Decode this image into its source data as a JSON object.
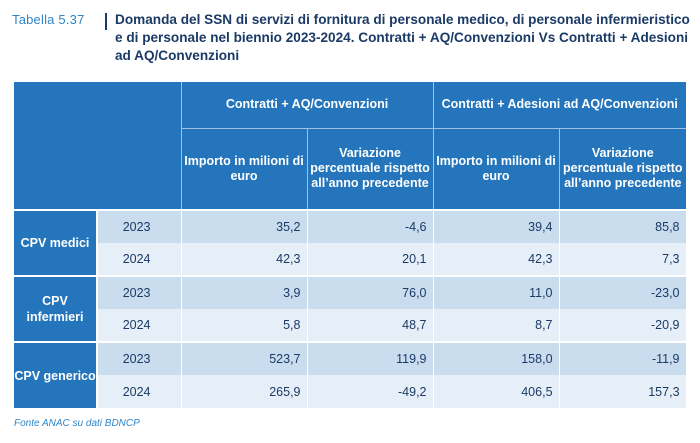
{
  "caption": {
    "label": "Tabella 5.37",
    "title": "Domanda del SSN di servizi di fornitura di personale medico, di personale infermieristico e di personale nel biennio 2023-2024. Contratti + AQ/Convenzioni Vs Contratti + Adesioni ad AQ/Convenzioni"
  },
  "table": {
    "groups": [
      "Contratti + AQ/Convenzioni",
      "Contratti + Adesioni ad AQ/Convenzioni"
    ],
    "subheaders": [
      "Importo in milioni di euro",
      "Variazione percentuale rispetto all’anno precedente",
      "Importo in milioni di euro",
      "Variazione percentuale rispetto all’anno precedente"
    ],
    "categories": [
      {
        "name": "CPV medici",
        "rows": [
          {
            "year": "2023",
            "values": [
              "35,2",
              "-4,6",
              "39,4",
              "85,8"
            ]
          },
          {
            "year": "2024",
            "values": [
              "42,3",
              "20,1",
              "42,3",
              "7,3"
            ]
          }
        ]
      },
      {
        "name": "CPV infermieri",
        "rows": [
          {
            "year": "2023",
            "values": [
              "3,9",
              "76,0",
              "11,0",
              "-23,0"
            ]
          },
          {
            "year": "2024",
            "values": [
              "5,8",
              "48,7",
              "8,7",
              "-20,9"
            ]
          }
        ]
      },
      {
        "name": "CPV generico",
        "rows": [
          {
            "year": "2023",
            "values": [
              "523,7",
              "119,9",
              "158,0",
              "-11,9"
            ]
          },
          {
            "year": "2024",
            "values": [
              "265,9",
              "-49,2",
              "406,5",
              "157,3"
            ]
          }
        ]
      }
    ]
  },
  "source": "Fonte ANAC su dati BDNCP",
  "colors": {
    "header_blue": "#2475bb",
    "row_dark": "#c9ddef",
    "row_light": "#e6eff8",
    "text_navy": "#1b3a66",
    "caption_blue": "#2f86c8"
  }
}
